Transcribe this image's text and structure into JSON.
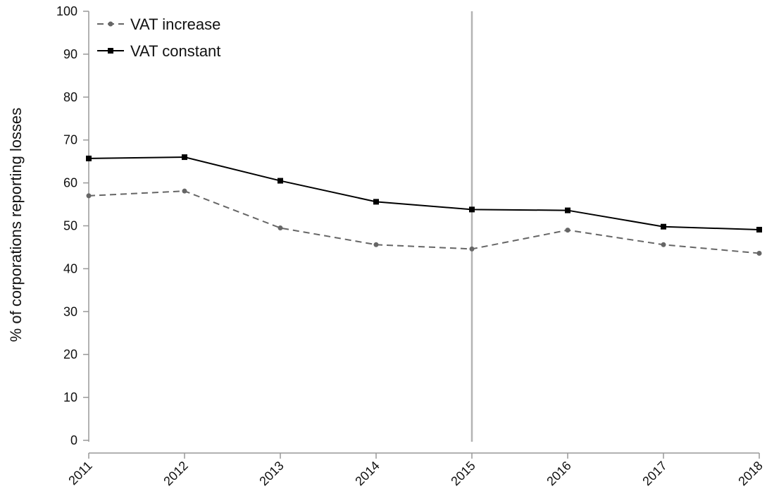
{
  "chart_data": {
    "type": "line",
    "x": [
      "2011",
      "2012",
      "2013",
      "2014",
      "2015",
      "2016",
      "2017",
      "2018"
    ],
    "ylabel": "% of corporations reporting losses",
    "xlabel": "",
    "ylim": [
      0,
      100
    ],
    "yticks": [
      "0",
      "10",
      "20",
      "30",
      "40",
      "50",
      "60",
      "70",
      "80",
      "90",
      "100"
    ],
    "reference_line_x": "2015",
    "reference_line_color": "#b3b3b3",
    "legend_position": "top-left",
    "grid": false,
    "series": [
      {
        "name": "VAT increase",
        "values": [
          57.0,
          58.1,
          49.5,
          45.6,
          44.6,
          49.0,
          45.6,
          43.6
        ],
        "color": "#666666",
        "line_style": "dashed",
        "marker": "circle"
      },
      {
        "name": "VAT constant",
        "values": [
          65.7,
          66.0,
          60.5,
          55.6,
          53.8,
          53.6,
          49.8,
          49.1
        ],
        "color": "#000000",
        "line_style": "solid",
        "marker": "square"
      }
    ]
  }
}
